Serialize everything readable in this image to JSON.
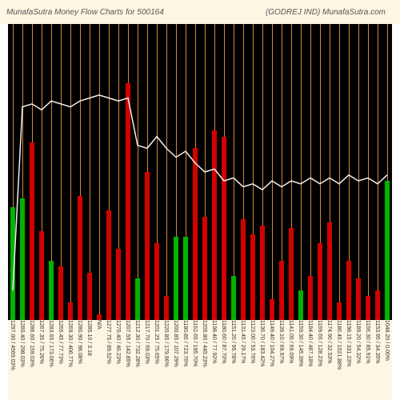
{
  "header": {
    "left": "MunafaSutra   Money Flow   Charts for 500164",
    "right": "(GODREJ IND) MunafaSutra.com",
    "bg": "#fdf6e3",
    "fg": "#555555"
  },
  "chart": {
    "type": "bar+line",
    "bg": "#000000",
    "grid_color": "#d4853a",
    "line_color": "#f0f0f0",
    "line_width": 1.5,
    "bar_width": 0.55,
    "green": "#00b400",
    "red": "#d40000",
    "ymax_bar": 100,
    "line_min": 0,
    "line_max": 100,
    "points": [
      {
        "label": "1297.00 / 4569.03%",
        "bar": 38,
        "color": "green",
        "line": 10
      },
      {
        "label": "1280.40 / 298.03%",
        "bar": 41,
        "color": "green",
        "line": 72
      },
      {
        "label": "1286.60 / 159.03%",
        "bar": 60,
        "color": "red",
        "line": 73
      },
      {
        "label": "1267.35 / 75.26%",
        "bar": 30,
        "color": "red",
        "line": 71
      },
      {
        "label": "1283.65 / 173.06%",
        "bar": 20,
        "color": "green",
        "line": 74
      },
      {
        "label": "1265.45 / 77.73%",
        "bar": 18,
        "color": "red",
        "line": 73
      },
      {
        "label": "1269.30 / 406.77%",
        "bar": 6,
        "color": "red",
        "line": 72
      },
      {
        "label": "1280.90 / 98.08%",
        "bar": 42,
        "color": "red",
        "line": 74
      },
      {
        "label": "1285.10 / 3.18",
        "bar": 16,
        "color": "red",
        "line": 75
      },
      {
        "label": "N/A",
        "bar": 2,
        "color": "red",
        "line": 76
      },
      {
        "label": "1277.75 / 89.52%",
        "bar": 37,
        "color": "red",
        "line": 75
      },
      {
        "label": "1270.40 / 46.23%",
        "bar": 24,
        "color": "red",
        "line": 74
      },
      {
        "label": "1207.55 / 142.85%",
        "bar": 80,
        "color": "red",
        "line": 75
      },
      {
        "label": "1212.30 / 732.28%",
        "bar": 14,
        "color": "green",
        "line": 59
      },
      {
        "label": "1217.70 / 69.03%",
        "bar": 50,
        "color": "red",
        "line": 58
      },
      {
        "label": "1201.25 / 75.65%",
        "bar": 26,
        "color": "red",
        "line": 62
      },
      {
        "label": "1220.85 / 179.96%",
        "bar": 8,
        "color": "red",
        "line": 58
      },
      {
        "label": "1200.85 / 107.29%",
        "bar": 28,
        "color": "green",
        "line": 55
      },
      {
        "label": "1180.85 / 723.76%",
        "bar": 28,
        "color": "green",
        "line": 57
      },
      {
        "label": "1162.65 / 195.70%",
        "bar": 58,
        "color": "red",
        "line": 53
      },
      {
        "label": "1205.80 / 445.23%",
        "bar": 35,
        "color": "red",
        "line": 50
      },
      {
        "label": "1198.40 / 77.92%",
        "bar": 64,
        "color": "red",
        "line": 51
      },
      {
        "label": "1180.60 / 87.70%",
        "bar": 62,
        "color": "red",
        "line": 47
      },
      {
        "label": "1151.20 / 95.78%",
        "bar": 15,
        "color": "green",
        "line": 48
      },
      {
        "label": "1131.45 / 29.17%",
        "bar": 34,
        "color": "red",
        "line": 45
      },
      {
        "label": "1123.00 / 53.76%",
        "bar": 29,
        "color": "red",
        "line": 46
      },
      {
        "label": "1136.70 / 183.42%",
        "bar": 32,
        "color": "red",
        "line": 44
      },
      {
        "label": "1149.40 / 104.27%",
        "bar": 7,
        "color": "red",
        "line": 47
      },
      {
        "label": "1139.10 / 69.97%",
        "bar": 20,
        "color": "red",
        "line": 45
      },
      {
        "label": "1141.05 / 69.09%",
        "bar": 31,
        "color": "red",
        "line": 47
      },
      {
        "label": "1169.30 / 145.39%",
        "bar": 10,
        "color": "green",
        "line": 46
      },
      {
        "label": "1184.40 / 467.18%",
        "bar": 15,
        "color": "red",
        "line": 48
      },
      {
        "label": "1169.65 / 128.23%",
        "bar": 26,
        "color": "red",
        "line": 46
      },
      {
        "label": "1174.90 / 32.53%",
        "bar": 33,
        "color": "red",
        "line": 48
      },
      {
        "label": "1186.45 / 1021.88%",
        "bar": 6,
        "color": "red",
        "line": 46
      },
      {
        "label": "1198.15 / 331.23%",
        "bar": 20,
        "color": "red",
        "line": 49
      },
      {
        "label": "1189.20 / 54.32%",
        "bar": 14,
        "color": "red",
        "line": 47
      },
      {
        "label": "1166.30 / 85.91%",
        "bar": 8,
        "color": "red",
        "line": 48
      },
      {
        "label": "1153.95 / 34.35%",
        "bar": 10,
        "color": "red",
        "line": 46
      },
      {
        "label": "1048.20 / 0.00%",
        "bar": 47,
        "color": "green",
        "line": 49
      }
    ]
  },
  "labels_area": {
    "bg": "#fdf6e3",
    "fg": "#333333"
  }
}
